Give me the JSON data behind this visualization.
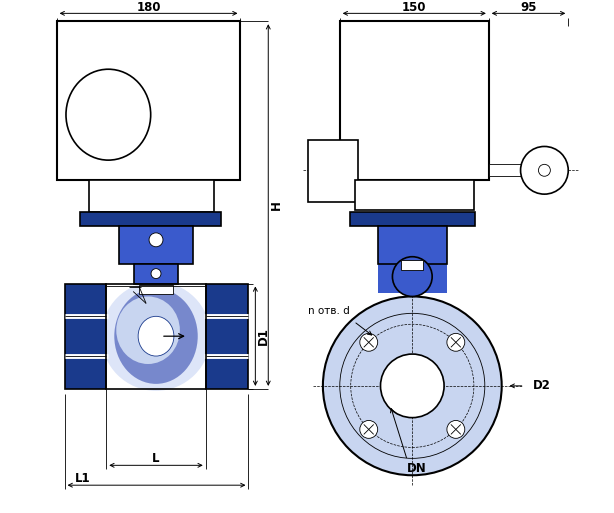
{
  "bg_color": "#ffffff",
  "line_color": "#000000",
  "blue_dark": "#1a3a8c",
  "blue_mid": "#3a5acc",
  "blue_light": "#7788cc",
  "blue_fill": "#aabbee",
  "blue_pale": "#c8d5f0",
  "blue_pale2": "#dde5f8",
  "grey_light": "#f0f0f0",
  "dim_color": "#000000",
  "dim_180": "180",
  "dim_150": "150",
  "dim_95": "95",
  "dim_H": "H",
  "dim_D1": "D1",
  "dim_D2": "D2",
  "dim_L": "L",
  "dim_L1": "L1",
  "dim_DN": "DN",
  "dim_notv_d": "n отв. d"
}
